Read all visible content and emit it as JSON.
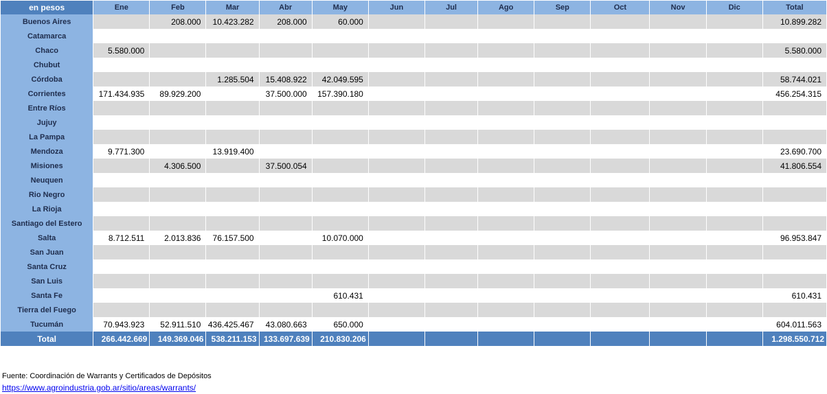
{
  "table": {
    "corner_label": "en pesos",
    "columns": [
      "Ene",
      "Feb",
      "Mar",
      "Abr",
      "May",
      "Jun",
      "Jul",
      "Ago",
      "Sep",
      "Oct",
      "Nov",
      "Dic",
      "Total"
    ],
    "rows": [
      {
        "label": "Buenos Aires",
        "cells": [
          "",
          "208.000",
          "10.423.282",
          "208.000",
          "60.000",
          "",
          "",
          "",
          "",
          "",
          "",
          "",
          "10.899.282"
        ]
      },
      {
        "label": "Catamarca",
        "cells": [
          "",
          "",
          "",
          "",
          "",
          "",
          "",
          "",
          "",
          "",
          "",
          "",
          ""
        ]
      },
      {
        "label": "Chaco",
        "cells": [
          "5.580.000",
          "",
          "",
          "",
          "",
          "",
          "",
          "",
          "",
          "",
          "",
          "",
          "5.580.000"
        ]
      },
      {
        "label": "Chubut",
        "cells": [
          "",
          "",
          "",
          "",
          "",
          "",
          "",
          "",
          "",
          "",
          "",
          "",
          ""
        ]
      },
      {
        "label": "Córdoba",
        "cells": [
          "",
          "",
          "1.285.504",
          "15.408.922",
          "42.049.595",
          "",
          "",
          "",
          "",
          "",
          "",
          "",
          "58.744.021"
        ]
      },
      {
        "label": "Corrientes",
        "cells": [
          "171.434.935",
          "89.929.200",
          "",
          "37.500.000",
          "157.390.180",
          "",
          "",
          "",
          "",
          "",
          "",
          "",
          "456.254.315"
        ]
      },
      {
        "label": "Entre Ríos",
        "cells": [
          "",
          "",
          "",
          "",
          "",
          "",
          "",
          "",
          "",
          "",
          "",
          "",
          ""
        ]
      },
      {
        "label": "Jujuy",
        "cells": [
          "",
          "",
          "",
          "",
          "",
          "",
          "",
          "",
          "",
          "",
          "",
          "",
          ""
        ]
      },
      {
        "label": "La Pampa",
        "cells": [
          "",
          "",
          "",
          "",
          "",
          "",
          "",
          "",
          "",
          "",
          "",
          "",
          ""
        ]
      },
      {
        "label": "Mendoza",
        "cells": [
          "9.771.300",
          "",
          "13.919.400",
          "",
          "",
          "",
          "",
          "",
          "",
          "",
          "",
          "",
          "23.690.700"
        ]
      },
      {
        "label": "Misiones",
        "cells": [
          "",
          "4.306.500",
          "",
          "37.500.054",
          "",
          "",
          "",
          "",
          "",
          "",
          "",
          "",
          "41.806.554"
        ]
      },
      {
        "label": "Neuquen",
        "cells": [
          "",
          "",
          "",
          "",
          "",
          "",
          "",
          "",
          "",
          "",
          "",
          "",
          ""
        ]
      },
      {
        "label": "Rio Negro",
        "cells": [
          "",
          "",
          "",
          "",
          "",
          "",
          "",
          "",
          "",
          "",
          "",
          "",
          ""
        ]
      },
      {
        "label": "La Rioja",
        "cells": [
          "",
          "",
          "",
          "",
          "",
          "",
          "",
          "",
          "",
          "",
          "",
          "",
          ""
        ]
      },
      {
        "label": "Santiago del Estero",
        "cells": [
          "",
          "",
          "",
          "",
          "",
          "",
          "",
          "",
          "",
          "",
          "",
          "",
          ""
        ]
      },
      {
        "label": "Salta",
        "cells": [
          "8.712.511",
          "2.013.836",
          "76.157.500",
          "",
          "10.070.000",
          "",
          "",
          "",
          "",
          "",
          "",
          "",
          "96.953.847"
        ]
      },
      {
        "label": "San Juan",
        "cells": [
          "",
          "",
          "",
          "",
          "",
          "",
          "",
          "",
          "",
          "",
          "",
          "",
          ""
        ]
      },
      {
        "label": "Santa Cruz",
        "cells": [
          "",
          "",
          "",
          "",
          "",
          "",
          "",
          "",
          "",
          "",
          "",
          "",
          ""
        ]
      },
      {
        "label": "San Luis",
        "cells": [
          "",
          "",
          "",
          "",
          "",
          "",
          "",
          "",
          "",
          "",
          "",
          "",
          ""
        ]
      },
      {
        "label": "Santa Fe",
        "cells": [
          "",
          "",
          "",
          "",
          "610.431",
          "",
          "",
          "",
          "",
          "",
          "",
          "",
          "610.431"
        ]
      },
      {
        "label": "Tierra del Fuego",
        "cells": [
          "",
          "",
          "",
          "",
          "",
          "",
          "",
          "",
          "",
          "",
          "",
          "",
          ""
        ]
      },
      {
        "label": "Tucumán",
        "cells": [
          "70.943.923",
          "52.911.510",
          "436.425.467",
          "43.080.663",
          "650.000",
          "",
          "",
          "",
          "",
          "",
          "",
          "",
          "604.011.563"
        ]
      }
    ],
    "total_row": {
      "label": "Total",
      "cells": [
        "266.442.669",
        "149.369.046",
        "538.211.153",
        "133.697.639",
        "210.830.206",
        "",
        "",
        "",
        "",
        "",
        "",
        "",
        "1.298.550.712"
      ]
    }
  },
  "footer": {
    "source_text": "Fuente: Coordinación de Warrants y Certificados de Depósitos",
    "link_text": "https://www.agroindustria.gob.ar/sitio/areas/warrants/"
  }
}
